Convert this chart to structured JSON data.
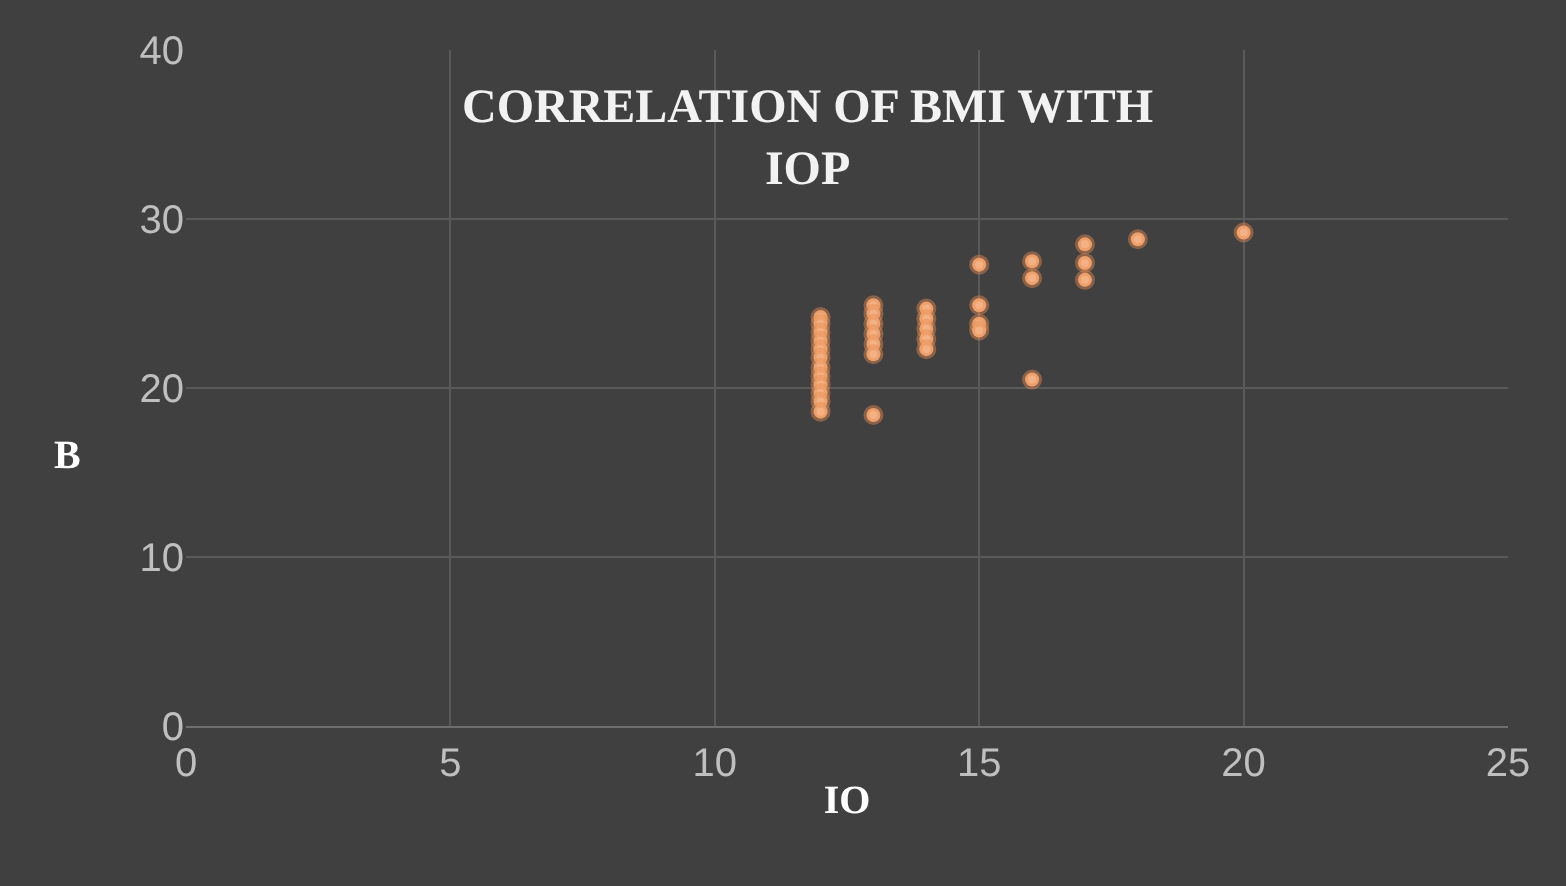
{
  "chart_data": {
    "type": "scatter",
    "title": "CORRELATION OF BMI WITH\nIOP",
    "xlabel": "IO",
    "ylabel": "B",
    "x": [
      12,
      12,
      12,
      12,
      12,
      12,
      12,
      12,
      12,
      12,
      12,
      12,
      13,
      13,
      13,
      13,
      13,
      13,
      13,
      14,
      14,
      14,
      14,
      14,
      15,
      15,
      15,
      15,
      16,
      16,
      16,
      17,
      17,
      17,
      18,
      20
    ],
    "series": [
      {
        "color": "#f4b183",
        "values": [
          24.2,
          23.8,
          23.3,
          22.8,
          22.3,
          21.8,
          21.2,
          20.7,
          20.2,
          19.7,
          19.2,
          18.6,
          24.9,
          24.4,
          23.8,
          23.2,
          22.6,
          22.0,
          18.4,
          24.7,
          24.1,
          23.5,
          22.9,
          22.3,
          27.3,
          24.9,
          23.8,
          23.4,
          27.5,
          26.5,
          20.5,
          28.5,
          27.4,
          26.4,
          28.8,
          29.2
        ]
      }
    ],
    "xlim": [
      0,
      25
    ],
    "ylim": [
      0,
      40
    ],
    "xticks": [
      0,
      5,
      10,
      15,
      20,
      25
    ],
    "yticks": [
      0,
      10,
      20,
      30,
      40
    ],
    "grid": true,
    "marker": "circle"
  }
}
